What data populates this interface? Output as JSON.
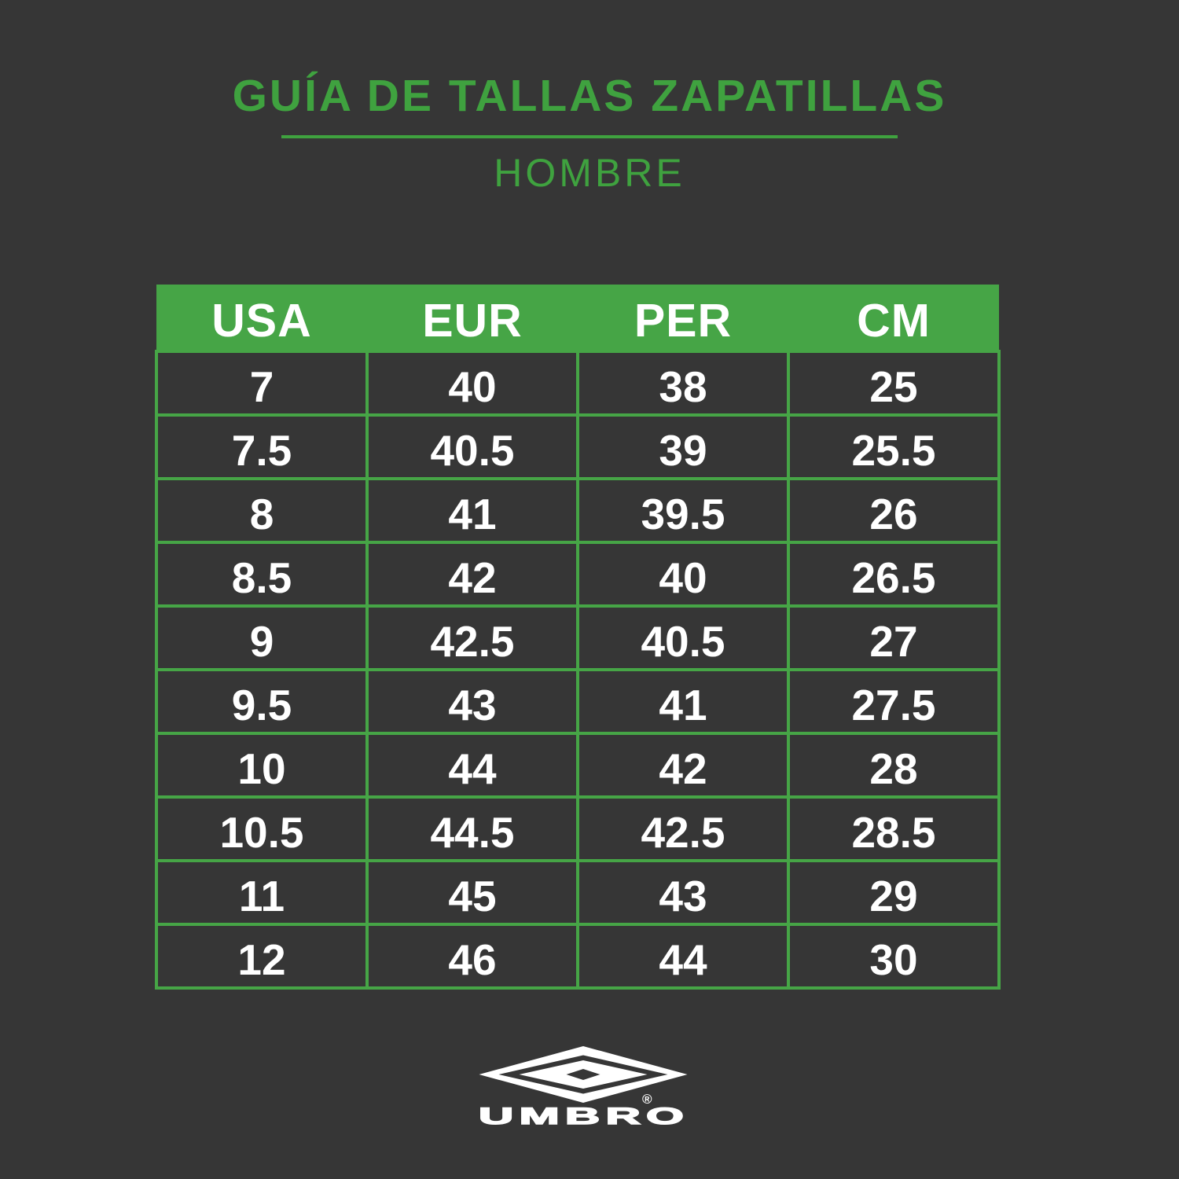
{
  "page": {
    "background_color": "#363636",
    "accent_green": "#46a546",
    "title_green": "#3fa23f",
    "text_color": "#ffffff"
  },
  "header": {
    "title": "GUÍA DE TALLAS ZAPATILLAS",
    "subtitle": "HOMBRE"
  },
  "chart_data": {
    "type": "table",
    "title": "GUÍA DE TALLAS ZAPATILLAS - HOMBRE",
    "columns": [
      "USA",
      "EUR",
      "PER",
      "CM"
    ],
    "rows": [
      [
        "7",
        "40",
        "38",
        "25"
      ],
      [
        "7.5",
        "40.5",
        "39",
        "25.5"
      ],
      [
        "8",
        "41",
        "39.5",
        "26"
      ],
      [
        "8.5",
        "42",
        "40",
        "26.5"
      ],
      [
        "9",
        "42.5",
        "40.5",
        "27"
      ],
      [
        "9.5",
        "43",
        "41",
        "27.5"
      ],
      [
        "10",
        "44",
        "42",
        "28"
      ],
      [
        "10.5",
        "44.5",
        "42.5",
        "28.5"
      ],
      [
        "11",
        "45",
        "43",
        "29"
      ],
      [
        "12",
        "46",
        "44",
        "30"
      ]
    ]
  },
  "brand": {
    "name": "UMBRO",
    "registered_mark": "®",
    "logo": "umbro-double-diamond-logo"
  }
}
